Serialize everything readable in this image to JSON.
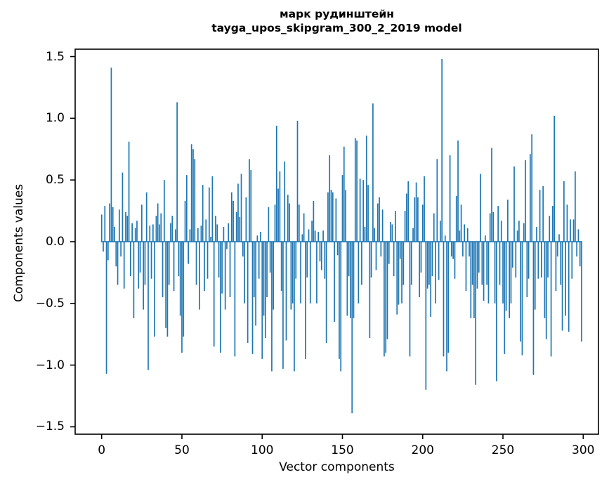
{
  "title": {
    "line1": "марк рудинштейн",
    "line2": "tayga_upos_skipgram_300_2_2019 model"
  },
  "axes": {
    "xlabel": "Vector components",
    "ylabel": "Components values",
    "x_tick_labels": [
      "0",
      "50",
      "100",
      "150",
      "200",
      "250",
      "300"
    ],
    "x_tick_values": [
      0,
      50,
      100,
      150,
      200,
      250,
      300
    ],
    "y_tick_labels": [
      "1.5",
      "1.0",
      "0.5",
      "0.0",
      "−0.5",
      "−1.0",
      "−1.5"
    ],
    "y_tick_values": [
      1.5,
      1.0,
      0.5,
      0.0,
      -0.5,
      -1.0,
      -1.5
    ],
    "xlim": [
      -16.5,
      309.5
    ],
    "ylim": [
      -1.56,
      1.56
    ],
    "grid": false,
    "legend": "none"
  },
  "chart_data": {
    "type": "bar",
    "title": "марк рудинштейн — tayga_upos_skipgram_300_2_2019 model",
    "xlabel": "Vector components",
    "ylabel": "Components values",
    "x_start": 0,
    "n_components": 300,
    "bar_color": "#1f77b4",
    "values": [
      0.22,
      -0.08,
      0.29,
      -1.07,
      -0.15,
      0.31,
      1.41,
      0.28,
      0.12,
      -0.2,
      -0.35,
      0.26,
      -0.12,
      0.56,
      -0.38,
      0.24,
      0.21,
      0.81,
      -0.28,
      0.15,
      -0.62,
      0.11,
      0.17,
      -0.38,
      -0.25,
      0.3,
      -0.55,
      -0.35,
      0.4,
      -1.04,
      0.13,
      -0.3,
      0.14,
      -0.77,
      0.21,
      0.31,
      0.14,
      0.23,
      -0.45,
      0.5,
      -0.7,
      -0.77,
      -0.35,
      0.15,
      0.21,
      -0.4,
      0.1,
      1.13,
      -0.28,
      -0.6,
      -0.9,
      -0.77,
      0.33,
      0.54,
      -0.18,
      0.1,
      0.79,
      0.75,
      0.67,
      -0.35,
      0.11,
      -0.55,
      0.13,
      0.46,
      -0.4,
      0.18,
      -0.3,
      0.44,
      0.04,
      0.53,
      -0.85,
      0.21,
      0.14,
      -0.29,
      -0.9,
      -0.42,
      0.12,
      -0.55,
      -0.06,
      0.15,
      -0.45,
      0.4,
      0.33,
      -0.93,
      0.24,
      0.47,
      0.2,
      0.55,
      -0.12,
      -0.5,
      0.36,
      -0.82,
      0.67,
      0.58,
      -0.91,
      -0.45,
      -0.68,
      0.05,
      -0.3,
      0.08,
      -0.95,
      -0.6,
      -0.78,
      -0.45,
      0.28,
      -0.25,
      -1.05,
      -0.55,
      0.3,
      0.94,
      0.43,
      0.57,
      -0.4,
      -1.03,
      0.65,
      -0.8,
      0.38,
      0.31,
      -0.55,
      -0.5,
      -1.05,
      -0.3,
      0.98,
      0.3,
      -0.5,
      0.06,
      0.23,
      -0.95,
      -0.29,
      0.1,
      -0.5,
      0.17,
      0.33,
      0.09,
      -0.5,
      0.08,
      -0.16,
      -0.23,
      0.09,
      -0.3,
      -0.82,
      0.4,
      0.7,
      0.42,
      0.4,
      -0.65,
      0.35,
      -0.11,
      -0.95,
      -1.05,
      0.54,
      0.77,
      0.42,
      -0.6,
      -0.28,
      -0.62,
      -1.39,
      -0.62,
      0.84,
      0.82,
      -0.5,
      0.51,
      -0.35,
      0.5,
      0.12,
      0.86,
      0.46,
      -0.78,
      -0.29,
      1.12,
      0.11,
      -0.23,
      0.31,
      0.36,
      -0.12,
      0.26,
      -0.93,
      -0.9,
      -0.79,
      -0.18,
      0.16,
      0.14,
      -0.28,
      0.25,
      -0.59,
      -0.51,
      -0.14,
      -0.5,
      -0.35,
      0.25,
      0.39,
      0.49,
      -0.93,
      -0.35,
      0.11,
      0.36,
      0.48,
      0.36,
      -0.45,
      -0.25,
      0.3,
      0.53,
      -1.2,
      -0.38,
      -0.35,
      -0.61,
      -0.28,
      0.23,
      -0.5,
      0.67,
      -0.31,
      0.17,
      1.48,
      -0.93,
      0.05,
      -1.05,
      -0.9,
      0.7,
      -0.12,
      -0.14,
      -0.3,
      0.37,
      0.82,
      0.09,
      0.3,
      -0.12,
      0.14,
      -0.4,
      0.11,
      -0.12,
      -0.62,
      -0.35,
      -0.62,
      -1.16,
      -0.38,
      -0.25,
      0.55,
      -0.35,
      -0.48,
      0.05,
      -0.35,
      -0.5,
      0.23,
      0.76,
      0.24,
      -0.5,
      -1.13,
      0.29,
      -0.35,
      0.17,
      -0.5,
      -0.91,
      -0.56,
      0.34,
      -0.62,
      -0.5,
      -0.21,
      0.61,
      -0.29,
      0.09,
      0.17,
      -0.81,
      -0.92,
      0.15,
      0.66,
      -0.45,
      -0.3,
      0.71,
      0.87,
      -1.08,
      -0.55,
      0.12,
      -0.3,
      0.42,
      -0.29,
      0.45,
      -0.62,
      -0.79,
      -0.29,
      0.21,
      -0.93,
      0.29,
      1.02,
      -0.4,
      -0.12,
      0.06,
      -0.35,
      -0.72,
      0.49,
      -0.6,
      0.3,
      -0.73,
      0.18,
      -0.3,
      0.18,
      0.57,
      -0.12,
      0.1,
      -0.2,
      -0.81
    ]
  },
  "style": {
    "background_color": "#ffffff",
    "spine_color": "#000000",
    "text_color": "#000000"
  }
}
